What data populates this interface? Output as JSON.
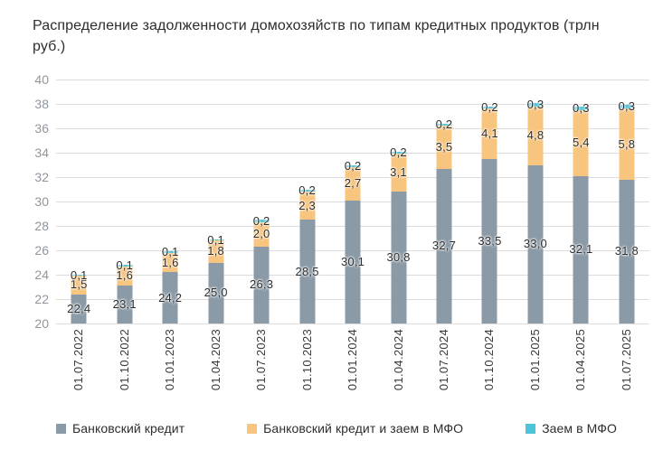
{
  "title": "Распределение задолженности домохозяйств по типам кредитных продуктов (трлн руб.)",
  "chart_data": {
    "type": "bar",
    "stacked": true,
    "title": "Распределение задолженности домохозяйств по типам кредитных продуктов (трлн руб.)",
    "categories": [
      "01.07.2022",
      "01.10.2022",
      "01.01.2023",
      "01.04.2023",
      "01.07.2023",
      "01.10.2023",
      "01.01.2024",
      "01.04.2024",
      "01.07.2024",
      "01.10.2024",
      "01.01.2025",
      "01.04.2025",
      "01.07.2025"
    ],
    "series": [
      {
        "name": "Банковский кредит",
        "color": "#8b9aa7",
        "values": [
          22.4,
          23.1,
          24.2,
          25.0,
          26.3,
          28.5,
          30.1,
          30.8,
          32.7,
          33.5,
          33.0,
          32.1,
          31.8
        ]
      },
      {
        "name": "Банковский кредит и заем в МФО",
        "color": "#f8c57f",
        "values": [
          1.5,
          1.6,
          1.6,
          1.8,
          2.0,
          2.3,
          2.7,
          3.1,
          3.5,
          4.1,
          4.8,
          5.4,
          5.8
        ]
      },
      {
        "name": "Заем в МФО",
        "color": "#4cc4d9",
        "values": [
          0.1,
          0.1,
          0.1,
          0.1,
          0.2,
          0.2,
          0.2,
          0.2,
          0.2,
          0.2,
          0.3,
          0.3,
          0.3
        ]
      }
    ],
    "ylim": [
      20,
      40
    ],
    "yticks": [
      40,
      38,
      36,
      34,
      32,
      30,
      28,
      26,
      24,
      22,
      20
    ],
    "grid": true,
    "gridline_color": "#dcdcdc",
    "value_label_decimal_separator": ",",
    "legend_position": "bottom",
    "background": "#ffffff"
  },
  "legend": {
    "items": [
      {
        "label": "Банковский кредит",
        "color": "#8b9aa7"
      },
      {
        "label": "Банковский кредит и заем в МФО",
        "color": "#f8c57f"
      },
      {
        "label": "Заем в МФО",
        "color": "#4cc4d9"
      }
    ]
  }
}
